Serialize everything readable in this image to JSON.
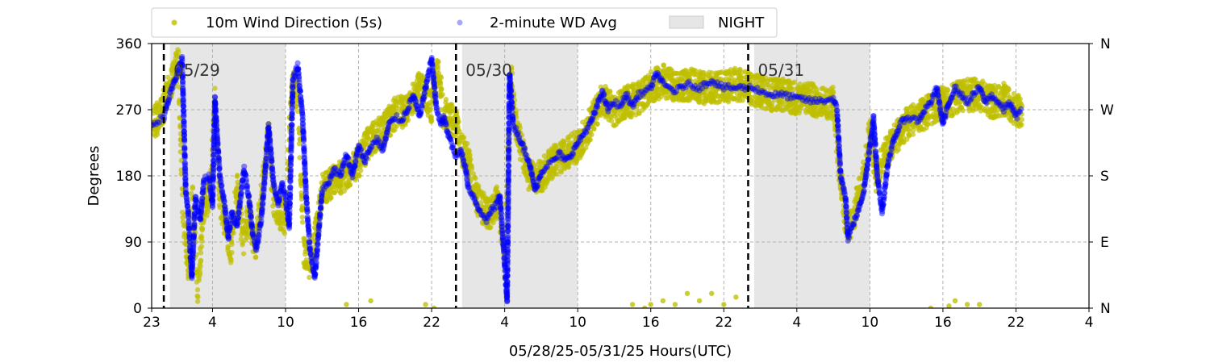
{
  "chart_data": {
    "type": "scatter",
    "xlabel": "05/28/25-05/31/25  Hours(UTC)",
    "ylabel": "Degrees",
    "xlim": [
      -1,
      76
    ],
    "ylim": [
      0,
      360
    ],
    "x_ticks": [
      {
        "x": -1,
        "label": "23"
      },
      {
        "x": 4,
        "label": "4"
      },
      {
        "x": 10,
        "label": "10"
      },
      {
        "x": 16,
        "label": "16"
      },
      {
        "x": 22,
        "label": "22"
      },
      {
        "x": 28,
        "label": "4"
      },
      {
        "x": 34,
        "label": "10"
      },
      {
        "x": 40,
        "label": "16"
      },
      {
        "x": 46,
        "label": "22"
      },
      {
        "x": 52,
        "label": "4"
      },
      {
        "x": 58,
        "label": "10"
      },
      {
        "x": 64,
        "label": "16"
      },
      {
        "x": 70,
        "label": "22"
      },
      {
        "x": 76,
        "label": "4"
      }
    ],
    "y_ticks": [
      0,
      90,
      180,
      270,
      360
    ],
    "y_right_labels": [
      {
        "y": 0,
        "label": "N"
      },
      {
        "y": 90,
        "label": "E"
      },
      {
        "y": 180,
        "label": "S"
      },
      {
        "y": 270,
        "label": "W"
      },
      {
        "y": 360,
        "label": "N"
      }
    ],
    "grid": true,
    "legend_position": "above-left",
    "legend": [
      {
        "label": "10m Wind Direction (5s)",
        "color": "#bfbf00",
        "marker": "dot"
      },
      {
        "label": "2-minute WD Avg",
        "color": "#0000ff",
        "marker": "dot-faded"
      },
      {
        "label": "NIGHT",
        "color": "#e6e6e6",
        "marker": "patch"
      }
    ],
    "night_spans": [
      [
        0.5,
        10
      ],
      [
        24.5,
        34
      ],
      [
        48.5,
        58
      ]
    ],
    "day_markers": [
      {
        "x": 0,
        "label": "05/29"
      },
      {
        "x": 24,
        "label": "05/30"
      },
      {
        "x": 48,
        "label": "05/31"
      }
    ],
    "series": [
      {
        "name": "10m Wind Direction (5s)",
        "color": "#bfbf00",
        "spread": 22,
        "points": [
          [
            -1,
            250
          ],
          [
            -0.3,
            262
          ],
          [
            0.5,
            300
          ],
          [
            1.2,
            335
          ],
          [
            1.5,
            150
          ],
          [
            2,
            55
          ],
          [
            2.3,
            170
          ],
          [
            2.8,
            20
          ],
          [
            3.2,
            130
          ],
          [
            3.8,
            160
          ],
          [
            4.2,
            280
          ],
          [
            4.6,
            150
          ],
          [
            5,
            120
          ],
          [
            5.5,
            80
          ],
          [
            6,
            170
          ],
          [
            6.5,
            90
          ],
          [
            7,
            130
          ],
          [
            7.5,
            80
          ],
          [
            8,
            150
          ],
          [
            8.6,
            240
          ],
          [
            9,
            150
          ],
          [
            9.5,
            130
          ],
          [
            10,
            120
          ],
          [
            10.5,
            310
          ],
          [
            11,
            290
          ],
          [
            11.5,
            80
          ],
          [
            12,
            60
          ],
          [
            12.6,
            110
          ],
          [
            13,
            160
          ],
          [
            14,
            175
          ],
          [
            15,
            180
          ],
          [
            16,
            200
          ],
          [
            17,
            230
          ],
          [
            18,
            240
          ],
          [
            19,
            265
          ],
          [
            20,
            270
          ],
          [
            21,
            300
          ],
          [
            22,
            275
          ],
          [
            22.5,
            330
          ],
          [
            23,
            265
          ],
          [
            24,
            250
          ],
          [
            24.5,
            215
          ],
          [
            25,
            200
          ],
          [
            25.5,
            160
          ],
          [
            26,
            140
          ],
          [
            26.5,
            130
          ],
          [
            27,
            130
          ],
          [
            27.5,
            150
          ],
          [
            28,
            60
          ],
          [
            28.5,
            320
          ],
          [
            29,
            240
          ],
          [
            29.5,
            210
          ],
          [
            30,
            180
          ],
          [
            31,
            180
          ],
          [
            32,
            200
          ],
          [
            33,
            210
          ],
          [
            34,
            220
          ],
          [
            35,
            250
          ],
          [
            36,
            285
          ],
          [
            37,
            270
          ],
          [
            38,
            280
          ],
          [
            39,
            285
          ],
          [
            40,
            300
          ],
          [
            41,
            310
          ],
          [
            42,
            300
          ],
          [
            43,
            305
          ],
          [
            44,
            300
          ],
          [
            45,
            300
          ],
          [
            46,
            300
          ],
          [
            47,
            305
          ],
          [
            48,
            300
          ],
          [
            49,
            295
          ],
          [
            50,
            290
          ],
          [
            51,
            290
          ],
          [
            52,
            285
          ],
          [
            53,
            285
          ],
          [
            54,
            280
          ],
          [
            55,
            280
          ],
          [
            55.5,
            190
          ],
          [
            56,
            120
          ],
          [
            56.5,
            110
          ],
          [
            57,
            150
          ],
          [
            57.5,
            180
          ],
          [
            58,
            240
          ],
          [
            58.5,
            180
          ],
          [
            59,
            200
          ],
          [
            60,
            230
          ],
          [
            61,
            250
          ],
          [
            62,
            260
          ],
          [
            63,
            270
          ],
          [
            64,
            280
          ],
          [
            65,
            285
          ],
          [
            66,
            290
          ],
          [
            67,
            290
          ],
          [
            68,
            280
          ],
          [
            69,
            285
          ],
          [
            70,
            270
          ],
          [
            70.5,
            265
          ]
        ],
        "outliers": [
          [
            40,
            5
          ],
          [
            41,
            10
          ],
          [
            42,
            5
          ],
          [
            43,
            20
          ],
          [
            44,
            10
          ],
          [
            45,
            20
          ],
          [
            46,
            5
          ],
          [
            47,
            15
          ],
          [
            38.5,
            5
          ],
          [
            39.5,
            0
          ],
          [
            65,
            10
          ],
          [
            66,
            5
          ],
          [
            67,
            5
          ],
          [
            63,
            0
          ],
          [
            64.5,
            3
          ],
          [
            22.2,
            0
          ],
          [
            21.5,
            5
          ],
          [
            17,
            10
          ],
          [
            15,
            5
          ]
        ]
      },
      {
        "name": "2-minute WD Avg",
        "color": "#0000ff",
        "points": [
          [
            -1,
            250
          ],
          [
            -0.5,
            255
          ],
          [
            0,
            260
          ],
          [
            0.5,
            290
          ],
          [
            1,
            315
          ],
          [
            1.5,
            340
          ],
          [
            1.8,
            160
          ],
          [
            2,
            130
          ],
          [
            2.3,
            40
          ],
          [
            2.6,
            150
          ],
          [
            3,
            120
          ],
          [
            3.3,
            175
          ],
          [
            3.7,
            180
          ],
          [
            4,
            140
          ],
          [
            4.2,
            285
          ],
          [
            4.4,
            230
          ],
          [
            4.6,
            180
          ],
          [
            5,
            140
          ],
          [
            5.3,
            95
          ],
          [
            5.6,
            130
          ],
          [
            6,
            110
          ],
          [
            6.3,
            150
          ],
          [
            6.6,
            190
          ],
          [
            7,
            150
          ],
          [
            7.3,
            100
          ],
          [
            7.6,
            80
          ],
          [
            8,
            120
          ],
          [
            8.3,
            180
          ],
          [
            8.6,
            250
          ],
          [
            9,
            170
          ],
          [
            9.4,
            140
          ],
          [
            9.7,
            170
          ],
          [
            10,
            150
          ],
          [
            10.3,
            110
          ],
          [
            10.6,
            310
          ],
          [
            11,
            330
          ],
          [
            11.4,
            260
          ],
          [
            11.7,
            150
          ],
          [
            12,
            80
          ],
          [
            12.4,
            40
          ],
          [
            12.8,
            120
          ],
          [
            13,
            160
          ],
          [
            13.5,
            170
          ],
          [
            14,
            190
          ],
          [
            14.5,
            180
          ],
          [
            15,
            210
          ],
          [
            15.5,
            180
          ],
          [
            16,
            220
          ],
          [
            16.5,
            200
          ],
          [
            17,
            220
          ],
          [
            17.5,
            230
          ],
          [
            18,
            215
          ],
          [
            18.5,
            250
          ],
          [
            19,
            260
          ],
          [
            19.5,
            255
          ],
          [
            20,
            270
          ],
          [
            20.5,
            290
          ],
          [
            21,
            260
          ],
          [
            21.5,
            300
          ],
          [
            22,
            340
          ],
          [
            22.4,
            270
          ],
          [
            22.8,
            250
          ],
          [
            23,
            260
          ],
          [
            23.3,
            240
          ],
          [
            23.7,
            220
          ],
          [
            24,
            205
          ],
          [
            24.4,
            215
          ],
          [
            24.8,
            190
          ],
          [
            25,
            165
          ],
          [
            25.5,
            150
          ],
          [
            26,
            130
          ],
          [
            26.5,
            120
          ],
          [
            27,
            135
          ],
          [
            27.3,
            140
          ],
          [
            27.6,
            155
          ],
          [
            28,
            60
          ],
          [
            28.2,
            10
          ],
          [
            28.4,
            320
          ],
          [
            28.7,
            250
          ],
          [
            29,
            240
          ],
          [
            29.5,
            220
          ],
          [
            30,
            200
          ],
          [
            30.5,
            160
          ],
          [
            31,
            185
          ],
          [
            31.5,
            195
          ],
          [
            32,
            200
          ],
          [
            32.5,
            210
          ],
          [
            33,
            200
          ],
          [
            33.5,
            210
          ],
          [
            34,
            225
          ],
          [
            35,
            250
          ],
          [
            35.5,
            270
          ],
          [
            36,
            295
          ],
          [
            36.5,
            270
          ],
          [
            37,
            280
          ],
          [
            37.5,
            275
          ],
          [
            38,
            290
          ],
          [
            38.5,
            275
          ],
          [
            39,
            290
          ],
          [
            40,
            300
          ],
          [
            40.5,
            320
          ],
          [
            41,
            305
          ],
          [
            42,
            295
          ],
          [
            43,
            305
          ],
          [
            44,
            300
          ],
          [
            45,
            310
          ],
          [
            46,
            300
          ],
          [
            47,
            300
          ],
          [
            48,
            300
          ],
          [
            48.5,
            300
          ],
          [
            49,
            295
          ],
          [
            50,
            290
          ],
          [
            51,
            290
          ],
          [
            52,
            285
          ],
          [
            52.5,
            285
          ],
          [
            53,
            282
          ],
          [
            54,
            282
          ],
          [
            55,
            285
          ],
          [
            55.3,
            270
          ],
          [
            55.6,
            180
          ],
          [
            56,
            150
          ],
          [
            56.2,
            95
          ],
          [
            56.5,
            110
          ],
          [
            57,
            130
          ],
          [
            57.5,
            160
          ],
          [
            58,
            220
          ],
          [
            58.3,
            260
          ],
          [
            58.6,
            180
          ],
          [
            59,
            130
          ],
          [
            59.5,
            200
          ],
          [
            60,
            230
          ],
          [
            60.5,
            250
          ],
          [
            61,
            260
          ],
          [
            62,
            255
          ],
          [
            62.5,
            270
          ],
          [
            63,
            280
          ],
          [
            63.5,
            300
          ],
          [
            64,
            250
          ],
          [
            64.5,
            280
          ],
          [
            65,
            300
          ],
          [
            66,
            280
          ],
          [
            67,
            300
          ],
          [
            67.5,
            280
          ],
          [
            68,
            290
          ],
          [
            69,
            270
          ],
          [
            69.5,
            280
          ],
          [
            70,
            260
          ],
          [
            70.5,
            270
          ]
        ]
      }
    ]
  }
}
